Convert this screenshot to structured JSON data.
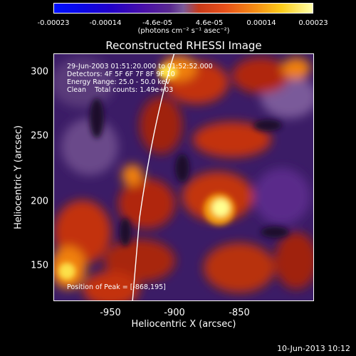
{
  "colorbar": {
    "ticks": [
      "-0.00023",
      "-0.00014",
      "-4.6e-05",
      "4.6e-05",
      "0.00014",
      "0.00023"
    ],
    "unit": "(photons cm⁻² s⁻¹ asec⁻²)"
  },
  "title": "Reconstructed RHESSI Image",
  "info": {
    "time": "29-Jun-2003 01:51:20.000 to 01:52:52.000",
    "detectors": "Detectors: 4F 5F 6F 7F 8F 9F 10",
    "energy": "Energy Range: 25.0 - 50.0 keV",
    "clean": "Clean    Total counts: 1.49e+03",
    "peak": "Position of Peak = [-868,195]"
  },
  "axes": {
    "xlabel": "Heliocentric X (arcsec)",
    "ylabel": "Heliocentric Y (arcsec)",
    "xticks": [
      "-950",
      "-900",
      "-850"
    ],
    "yticks": [
      "300",
      "250",
      "200",
      "150"
    ]
  },
  "timestamp": "10-Jun-2013 10:12",
  "colors": {
    "background": "#000000",
    "text": "#ffffff",
    "map_low": "#3a1a6a",
    "map_high": "#ffffaa"
  }
}
